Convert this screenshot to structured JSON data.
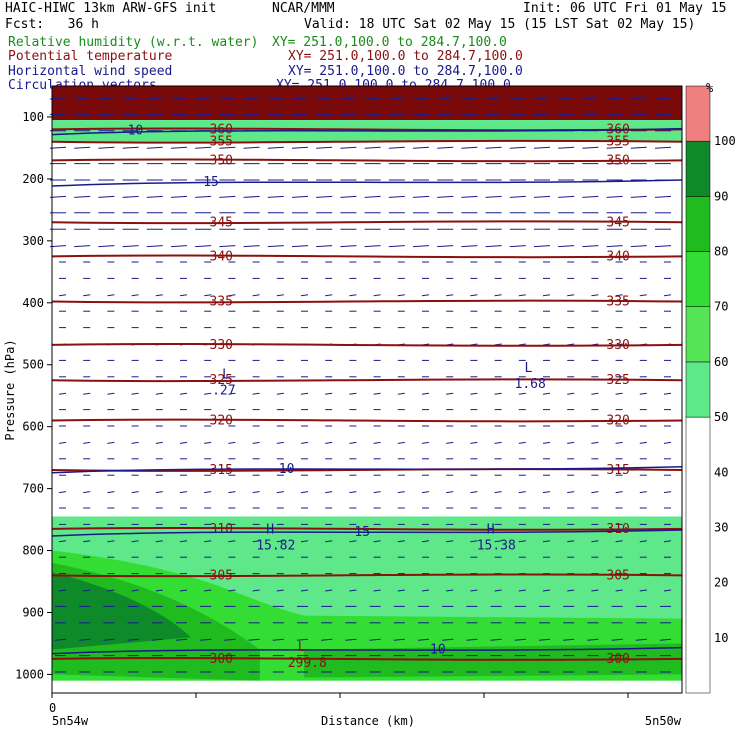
{
  "header": {
    "title": "HAIC-HIWC 13km ARW-GFS init",
    "org": "NCAR/MMM",
    "init": "Init: 06 UTC Fri 01 May 15",
    "fcst": "Fcst:   36 h",
    "valid": "Valid: 18 UTC Sat 02 May 15 (15 LST Sat 02 May 15)",
    "fields": [
      {
        "name": "Relative humidity (w.r.t. water)",
        "xy": "XY= 251.0,100.0 to 284.7,100.0",
        "color": "#1a8c1a"
      },
      {
        "name": "Potential temperature",
        "xy": "XY= 251.0,100.0 to 284.7,100.0",
        "color": "#8b1010"
      },
      {
        "name": "Horizontal wind speed",
        "xy": "XY= 251.0,100.0 to 284.7,100.0",
        "color": "#1a1a8c"
      },
      {
        "name": "Circulation vectors",
        "xy": "XY= 251.0,100.0 to 284.7,100.0",
        "color": "#1a1a8c"
      }
    ]
  },
  "chart_data": {
    "type": "heatmap",
    "ylabel": "Pressure (hPa)",
    "xlabel": "Distance (km)",
    "x_start_label": "5n54w",
    "x_end_label": "5n50w",
    "x_zero_label": "0",
    "y_ticks": [
      100,
      200,
      300,
      400,
      500,
      600,
      700,
      800,
      900,
      1000
    ],
    "ylim": [
      1030,
      50
    ],
    "colorbar": {
      "unit": "%",
      "ticks": [
        10,
        20,
        30,
        40,
        50,
        60,
        70,
        80,
        90,
        100
      ],
      "bins": [
        {
          "range": [
            0,
            50
          ],
          "color": "#ffffff"
        },
        {
          "range": [
            50,
            60
          ],
          "color": "#5fe88a"
        },
        {
          "range": [
            60,
            70
          ],
          "color": "#55e455"
        },
        {
          "range": [
            70,
            80
          ],
          "color": "#33dd33"
        },
        {
          "range": [
            80,
            90
          ],
          "color": "#1fbb1f"
        },
        {
          "range": [
            90,
            100
          ],
          "color": "#0e8a2a"
        },
        {
          "range": [
            100,
            110
          ],
          "color": "#f08080"
        }
      ]
    },
    "rh_layers": [
      {
        "p_top": 50,
        "p_bot": 105,
        "color": "#7a0a0a",
        "value": ">100"
      },
      {
        "p_top": 105,
        "p_bot": 140,
        "color": "#5fe88a",
        "value": "50-60"
      },
      {
        "p_top": 745,
        "p_bot": 1010,
        "color": "#5fe88a",
        "value": "50-60"
      }
    ],
    "theta_contours": [
      {
        "value": 360,
        "p": 120
      },
      {
        "value": 355,
        "p": 140
      },
      {
        "value": 350,
        "p": 170
      },
      {
        "value": 345,
        "p": 270
      },
      {
        "value": 340,
        "p": 325
      },
      {
        "value": 335,
        "p": 398
      },
      {
        "value": 330,
        "p": 468
      },
      {
        "value": 325,
        "p": 525
      },
      {
        "value": 320,
        "p": 590
      },
      {
        "value": 315,
        "p": 670
      },
      {
        "value": 310,
        "p": 765
      },
      {
        "value": 305,
        "p": 840
      },
      {
        "value": 300,
        "p": 975
      }
    ],
    "wind_contours": [
      {
        "value": 10,
        "p": 122
      },
      {
        "value": 15,
        "p": 205
      },
      {
        "value": 10,
        "p": 668
      },
      {
        "value": 15,
        "p": 770
      },
      {
        "value": 10,
        "p": 960
      }
    ],
    "extrema": [
      {
        "type": "L",
        "value": ".27",
        "x_frac": 0.27,
        "p": 535
      },
      {
        "type": "L",
        "value": "1.68",
        "x_frac": 0.75,
        "p": 525
      },
      {
        "type": "H",
        "value": "15.82",
        "x_frac": 0.34,
        "p": 785
      },
      {
        "type": "H",
        "value": "15.38",
        "x_frac": 0.69,
        "p": 785
      },
      {
        "type": "L",
        "value": "299.8",
        "x_frac": 0.39,
        "p": 975
      }
    ]
  }
}
